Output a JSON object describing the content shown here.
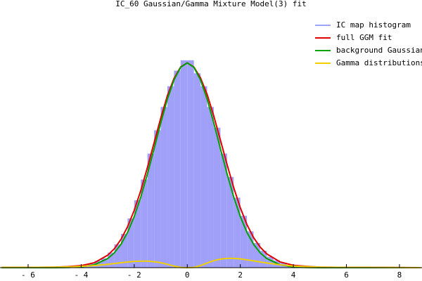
{
  "chart_data": {
    "type": "histogram",
    "title": "IC_60 Gaussian/Gamma Mixture Model(3) fit",
    "histogram": {
      "name": "IC map histogram",
      "color": "#a0a0f8",
      "bins": [
        -4,
        -3.75,
        -3.5,
        -3.25,
        -3,
        -2.75,
        -2.5,
        -2.25,
        -2,
        -1.75,
        -1.5,
        -1.25,
        -1,
        -0.75,
        -0.5,
        -0.25,
        0,
        0.25,
        0.5,
        0.75,
        1,
        1.25,
        1.5,
        1.75,
        2,
        2.25,
        2.5,
        2.75,
        3,
        3.25,
        3.5,
        3.75,
        4
      ],
      "values": [
        0.01,
        0.015,
        0.026,
        0.036,
        0.058,
        0.09,
        0.13,
        0.19,
        0.26,
        0.34,
        0.44,
        0.53,
        0.62,
        0.7,
        0.76,
        0.8,
        0.8,
        0.75,
        0.7,
        0.62,
        0.54,
        0.44,
        0.35,
        0.27,
        0.2,
        0.14,
        0.095,
        0.065,
        0.042,
        0.028,
        0.018,
        0.011
      ]
    },
    "x": [
      -7,
      -6,
      -5,
      -4.5,
      -4,
      -3.5,
      -3,
      -2.75,
      -2.5,
      -2.25,
      -2,
      -1.75,
      -1.5,
      -1.25,
      -1,
      -0.75,
      -0.5,
      -0.25,
      0,
      0.25,
      0.5,
      0.75,
      1,
      1.25,
      1.5,
      1.75,
      2,
      2.25,
      2.5,
      2.75,
      3,
      3.5,
      4,
      4.5,
      5,
      6,
      7,
      8.8
    ],
    "series": [
      {
        "name": "full GGM fit",
        "color": "#e00000",
        "values": [
          0.001,
          0.001,
          0.002,
          0.004,
          0.008,
          0.019,
          0.048,
          0.073,
          0.109,
          0.158,
          0.221,
          0.298,
          0.387,
          0.482,
          0.577,
          0.663,
          0.73,
          0.774,
          0.79,
          0.774,
          0.732,
          0.668,
          0.585,
          0.492,
          0.398,
          0.309,
          0.231,
          0.166,
          0.116,
          0.079,
          0.053,
          0.022,
          0.009,
          0.005,
          0.002,
          0.001,
          0.001,
          0
        ]
      },
      {
        "name": "background Gaussian",
        "color": "#00a000",
        "values": [
          0,
          0,
          0.0001,
          0.0007,
          0.003,
          0.011,
          0.035,
          0.057,
          0.09,
          0.136,
          0.197,
          0.273,
          0.362,
          0.459,
          0.558,
          0.65,
          0.724,
          0.773,
          0.79,
          0.773,
          0.724,
          0.65,
          0.558,
          0.459,
          0.362,
          0.273,
          0.197,
          0.136,
          0.09,
          0.057,
          0.035,
          0.011,
          0.003,
          0.0007,
          0.0001,
          0,
          0,
          0
        ]
      },
      {
        "name": "Gamma distributions",
        "color": "#f0d000",
        "values": [
          0.001,
          0.001,
          0.002,
          0.003,
          0.005,
          0.008,
          0.013,
          0.016,
          0.019,
          0.022,
          0.024,
          0.025,
          0.025,
          0.023,
          0.019,
          0.013,
          0.006,
          0.001,
          0,
          0.001,
          0.008,
          0.018,
          0.027,
          0.033,
          0.036,
          0.036,
          0.034,
          0.03,
          0.026,
          0.022,
          0.018,
          0.011,
          0.006,
          0.004,
          0.002,
          0.001,
          0.001,
          0
        ]
      }
    ],
    "xlim": [
      -7.06,
      8.85
    ],
    "ylim": [
      0,
      1
    ],
    "xticks": [
      {
        "value": -6,
        "label": "- 6"
      },
      {
        "value": -4,
        "label": "- 4"
      },
      {
        "value": -2,
        "label": "- 2"
      },
      0,
      2,
      4,
      6,
      8
    ],
    "legend": "upper right"
  }
}
